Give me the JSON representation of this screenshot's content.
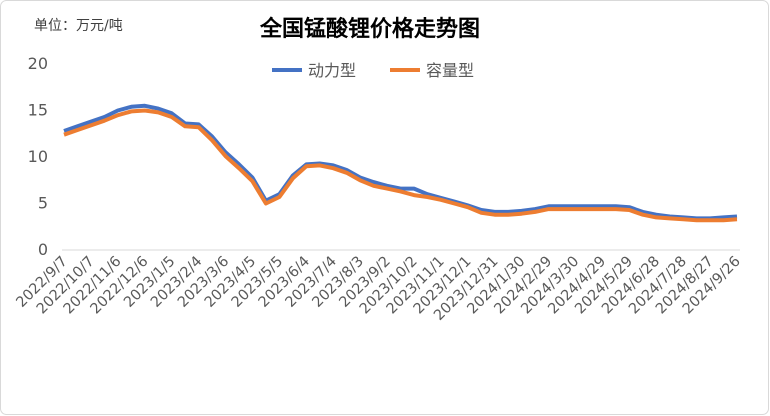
{
  "chart_data": {
    "type": "line",
    "title": "全国锰酸锂价格走势图",
    "y_label": "单位：万元/吨",
    "categories": [
      "2022/9/7",
      null,
      "2022/10/7",
      null,
      "2022/11/6",
      null,
      "2022/12/6",
      null,
      "2023/1/5",
      null,
      "2023/2/4",
      null,
      "2023/3/6",
      null,
      "2023/4/5",
      null,
      "2023/5/5",
      null,
      "2023/6/4",
      null,
      "2023/7/4",
      null,
      "2023/8/3",
      null,
      "2023/9/2",
      null,
      "2023/10/2",
      null,
      "2023/11/1",
      null,
      "2023/12/1",
      null,
      "2023/12/31",
      null,
      "2024/1/30",
      null,
      "2024/2/29",
      null,
      "2024/3/30",
      null,
      "2024/4/29",
      null,
      "2024/5/29",
      null,
      "2024/6/28",
      null,
      "2024/7/28",
      null,
      "2024/8/27",
      null,
      "2024/9/26"
    ],
    "series": [
      {
        "name": "动力型",
        "color": "#4472c4",
        "values": [
          12.8,
          13.3,
          13.8,
          14.3,
          15.0,
          15.4,
          15.5,
          15.2,
          14.7,
          13.6,
          13.5,
          12.2,
          10.5,
          9.2,
          7.8,
          5.3,
          6.0,
          8.0,
          9.2,
          9.3,
          9.1,
          8.6,
          7.8,
          7.3,
          6.9,
          6.6,
          6.6,
          6.0,
          5.6,
          5.2,
          4.8,
          4.3,
          4.1,
          4.1,
          4.2,
          4.4,
          4.7,
          4.7,
          4.7,
          4.7,
          4.7,
          4.7,
          4.6,
          4.1,
          3.8,
          3.6,
          3.5,
          3.4,
          3.4,
          3.5,
          3.6
        ]
      },
      {
        "name": "容量型",
        "color": "#ed7d31",
        "values": [
          12.4,
          12.9,
          13.4,
          13.9,
          14.5,
          14.9,
          15.0,
          14.8,
          14.3,
          13.3,
          13.2,
          11.8,
          10.1,
          8.8,
          7.4,
          5.0,
          5.7,
          7.7,
          9.0,
          9.1,
          8.8,
          8.3,
          7.5,
          6.9,
          6.6,
          6.3,
          5.9,
          5.7,
          5.4,
          5.0,
          4.6,
          4.0,
          3.8,
          3.8,
          3.9,
          4.1,
          4.4,
          4.4,
          4.4,
          4.4,
          4.4,
          4.4,
          4.3,
          3.8,
          3.5,
          3.4,
          3.3,
          3.2,
          3.2,
          3.2,
          3.3
        ]
      }
    ],
    "ylim": [
      0,
      20
    ],
    "yticks": [
      0,
      5,
      10,
      15,
      20
    ],
    "grid": false,
    "legend": "top"
  }
}
